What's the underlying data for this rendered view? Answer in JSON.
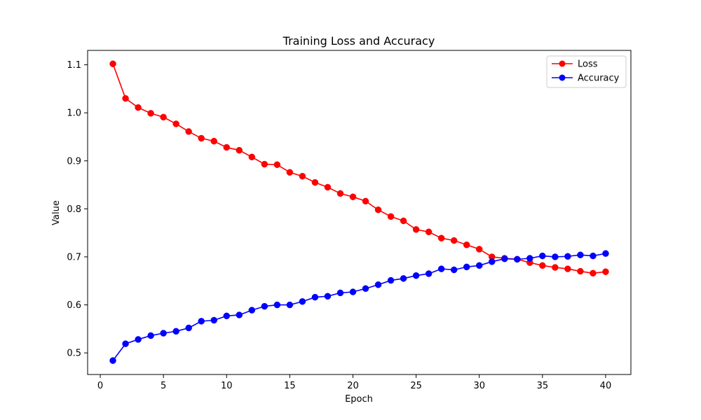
{
  "chart_data": {
    "type": "line",
    "title": "Training Loss and Accuracy",
    "xlabel": "Epoch",
    "ylabel": "Value",
    "xlim": [
      -1,
      42
    ],
    "ylim": [
      0.455,
      1.13
    ],
    "xticks": [
      0,
      5,
      10,
      15,
      20,
      25,
      30,
      35,
      40
    ],
    "yticks": [
      0.5,
      0.6,
      0.7,
      0.8,
      0.9,
      1.0,
      1.1
    ],
    "grid": false,
    "legend_position": "upper-right",
    "x": [
      1,
      2,
      3,
      4,
      5,
      6,
      7,
      8,
      9,
      10,
      11,
      12,
      13,
      14,
      15,
      16,
      17,
      18,
      19,
      20,
      21,
      22,
      23,
      24,
      25,
      26,
      27,
      28,
      29,
      30,
      31,
      32,
      33,
      34,
      35,
      36,
      37,
      38,
      39,
      40
    ],
    "series": [
      {
        "name": "Loss",
        "color": "#ff0000",
        "marker": "circle",
        "values": [
          1.102,
          1.03,
          1.011,
          0.999,
          0.991,
          0.977,
          0.961,
          0.947,
          0.941,
          0.928,
          0.922,
          0.908,
          0.893,
          0.892,
          0.876,
          0.868,
          0.855,
          0.845,
          0.832,
          0.825,
          0.816,
          0.798,
          0.784,
          0.775,
          0.757,
          0.752,
          0.739,
          0.734,
          0.725,
          0.716,
          0.7,
          0.697,
          0.695,
          0.688,
          0.682,
          0.678,
          0.675,
          0.67,
          0.666,
          0.669
        ]
      },
      {
        "name": "Accuracy",
        "color": "#0000ff",
        "marker": "circle",
        "values": [
          0.484,
          0.519,
          0.528,
          0.536,
          0.541,
          0.545,
          0.552,
          0.566,
          0.568,
          0.577,
          0.579,
          0.589,
          0.597,
          0.6,
          0.6,
          0.607,
          0.616,
          0.618,
          0.625,
          0.627,
          0.634,
          0.642,
          0.651,
          0.655,
          0.661,
          0.665,
          0.675,
          0.673,
          0.679,
          0.682,
          0.69,
          0.696,
          0.695,
          0.697,
          0.702,
          0.7,
          0.701,
          0.704,
          0.702,
          0.707
        ]
      }
    ]
  }
}
